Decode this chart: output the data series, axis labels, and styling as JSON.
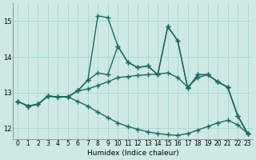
{
  "title": "",
  "xlabel": "Humidex (Indice chaleur)",
  "ylabel": "",
  "xlim": [
    -0.5,
    23.5
  ],
  "ylim": [
    11.7,
    15.5
  ],
  "yticks": [
    12,
    13,
    14,
    15
  ],
  "xticks": [
    0,
    1,
    2,
    3,
    4,
    5,
    6,
    7,
    8,
    9,
    10,
    11,
    12,
    13,
    14,
    15,
    16,
    17,
    18,
    19,
    20,
    21,
    22,
    23
  ],
  "bg_color": "#cee9e5",
  "grid_color": "#a8d4cf",
  "line_color": "#1a6b60",
  "line_width": 1.0,
  "marker": "+",
  "marker_size": 4,
  "series": [
    [
      12.75,
      12.62,
      12.67,
      12.9,
      12.88,
      12.88,
      13.05,
      13.35,
      15.15,
      15.1,
      14.3,
      13.85,
      13.7,
      13.75,
      13.5,
      14.85,
      14.45,
      13.12,
      13.5,
      13.5,
      13.3,
      13.15,
      12.35,
      11.85
    ],
    [
      12.75,
      12.62,
      12.67,
      12.9,
      12.88,
      12.88,
      13.05,
      13.35,
      13.55,
      13.5,
      14.3,
      13.85,
      13.7,
      13.75,
      13.5,
      14.85,
      14.45,
      13.12,
      13.5,
      13.5,
      13.3,
      13.15,
      12.35,
      11.85
    ],
    [
      12.75,
      12.62,
      12.67,
      12.9,
      12.88,
      12.88,
      13.05,
      13.1,
      13.2,
      13.3,
      13.42,
      13.45,
      13.48,
      13.5,
      13.52,
      13.55,
      13.42,
      13.15,
      13.42,
      13.5,
      13.3,
      13.15,
      12.35,
      11.85
    ],
    [
      12.75,
      12.62,
      12.67,
      12.9,
      12.88,
      12.88,
      12.75,
      12.62,
      12.45,
      12.3,
      12.15,
      12.05,
      11.97,
      11.9,
      11.85,
      11.82,
      11.8,
      11.85,
      11.95,
      12.05,
      12.15,
      12.22,
      12.1,
      11.85
    ]
  ]
}
